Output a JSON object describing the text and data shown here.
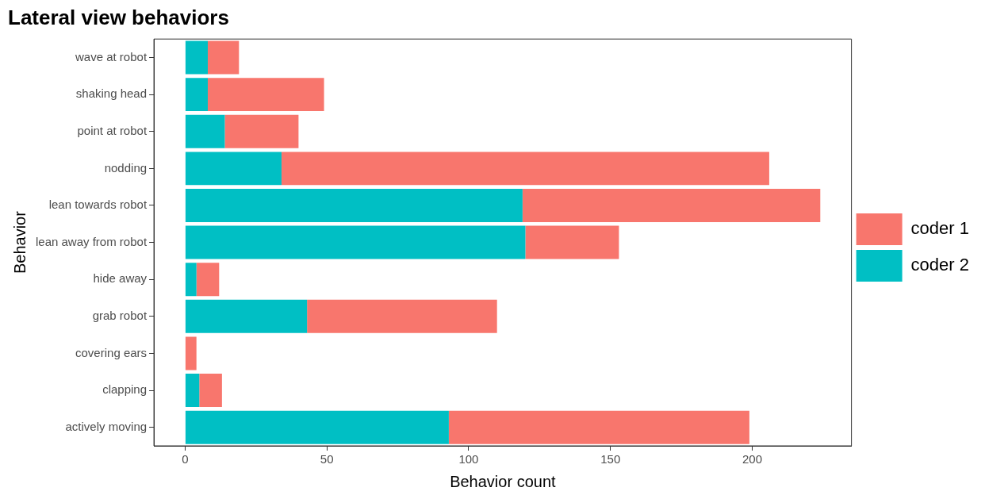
{
  "chart_data": {
    "type": "bar",
    "title": "Lateral view behaviors",
    "xlabel": "Behavior count",
    "ylabel": "Behavior",
    "orientation": "horizontal",
    "stacked": true,
    "categories": [
      "wave at robot",
      "shaking head",
      "point at robot",
      "nodding",
      "lean towards robot",
      "lean away from robot",
      "hide away",
      "grab robot",
      "covering ears",
      "clapping",
      "actively moving"
    ],
    "series": [
      {
        "name": "coder 2",
        "color": "#00bfc4",
        "values": [
          8,
          8,
          14,
          34,
          119,
          120,
          4,
          43,
          0,
          5,
          93
        ]
      },
      {
        "name": "coder 1",
        "color": "#f8766d",
        "values": [
          11,
          41,
          26,
          172,
          105,
          33,
          8,
          67,
          4,
          8,
          106
        ]
      }
    ],
    "xlim": [
      -11,
      235
    ],
    "xticks": [
      0,
      50,
      100,
      150,
      200
    ],
    "grid": false,
    "legend": "right"
  }
}
